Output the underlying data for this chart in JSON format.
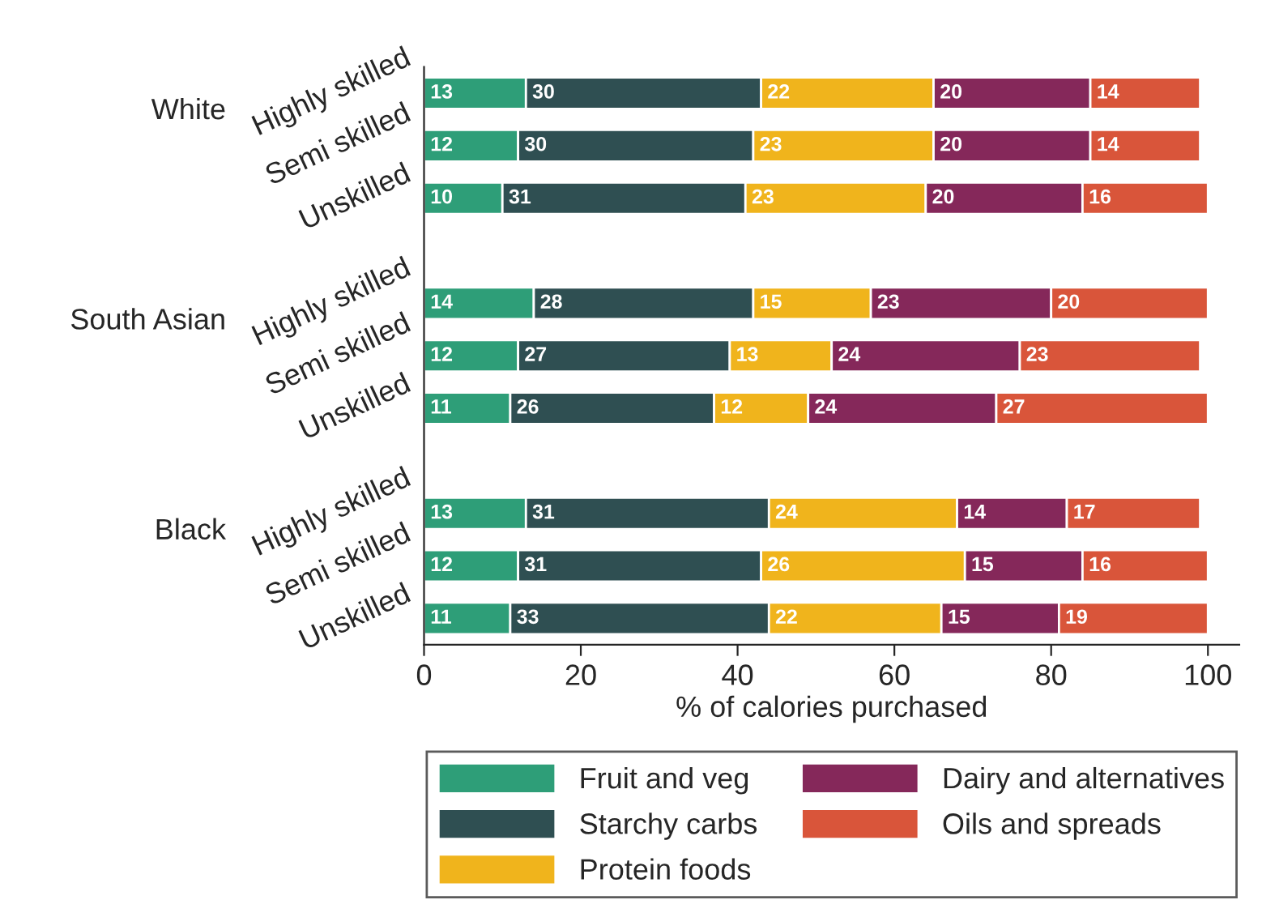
{
  "chart_data": {
    "type": "bar",
    "orientation": "horizontal",
    "stacked": true,
    "xlabel": "% of calories purchased",
    "categories": [
      "Highly skilled",
      "Semi skilled",
      "Unskilled",
      null,
      "Highly skilled",
      "Semi skilled",
      "Unskilled",
      null,
      "Highly skilled",
      "Semi skilled",
      "Unskilled"
    ],
    "series": [
      {
        "name": "Fruit and veg",
        "color": "#2e9e78",
        "values": [
          13,
          12,
          10,
          null,
          14,
          12,
          11,
          null,
          13,
          12,
          11
        ]
      },
      {
        "name": "Starchy carbs",
        "color": "#2f4f52",
        "values": [
          30,
          30,
          31,
          null,
          28,
          27,
          26,
          null,
          31,
          31,
          33
        ]
      },
      {
        "name": "Protein foods",
        "color": "#f0b41c",
        "values": [
          22,
          23,
          23,
          null,
          15,
          13,
          12,
          null,
          24,
          26,
          22
        ]
      },
      {
        "name": "Dairy and alternatives",
        "color": "#85285a",
        "values": [
          20,
          20,
          20,
          null,
          23,
          24,
          24,
          null,
          14,
          15,
          15
        ]
      },
      {
        "name": "Oils and spreads",
        "color": "#d9553a",
        "values": [
          14,
          14,
          16,
          null,
          20,
          23,
          27,
          null,
          17,
          16,
          19
        ]
      }
    ],
    "annotations": [
      "White",
      "South Asian",
      "Black"
    ],
    "xlim": [
      0,
      104
    ],
    "xticks": [
      0,
      20,
      40,
      60,
      80,
      100
    ],
    "data_labels": true,
    "legend": "bottom",
    "grid": false
  }
}
